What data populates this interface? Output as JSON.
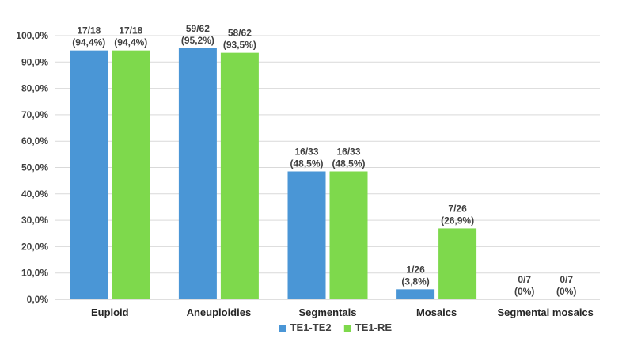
{
  "chart_data": {
    "type": "bar",
    "categories": [
      "Euploid",
      "Aneuploidies",
      "Segmentals",
      "Mosaics",
      "Segmental mosaics"
    ],
    "series": [
      {
        "name": "TE1-TE2",
        "color": "#4a96d6",
        "values": [
          94.4,
          95.2,
          48.5,
          3.8,
          0
        ],
        "labels": [
          [
            "17/18",
            "(94,4%)"
          ],
          [
            "59/62",
            "(95,2%)"
          ],
          [
            "16/33",
            "(48,5%)"
          ],
          [
            "1/26",
            "(3,8%)"
          ],
          [
            "0/7",
            "(0%)"
          ]
        ]
      },
      {
        "name": "TE1-RE",
        "color": "#7ed94c",
        "values": [
          94.4,
          93.5,
          48.5,
          26.9,
          0
        ],
        "labels": [
          [
            "17/18",
            "(94,4%)"
          ],
          [
            "58/62",
            "(93,5%)"
          ],
          [
            "16/33",
            "(48,5%)"
          ],
          [
            "7/26",
            "(26,9%)"
          ],
          [
            "0/7",
            "(0%)"
          ]
        ]
      }
    ],
    "y_ticks": [
      "0,0%",
      "10,0%",
      "20,0%",
      "30,0%",
      "40,0%",
      "50,0%",
      "60,0%",
      "70,0%",
      "80,0%",
      "90,0%",
      "100,0%"
    ],
    "ylim": [
      0,
      100
    ],
    "grid": true,
    "legend_position": "bottom-center",
    "title": "",
    "xlabel": "",
    "ylabel": ""
  }
}
